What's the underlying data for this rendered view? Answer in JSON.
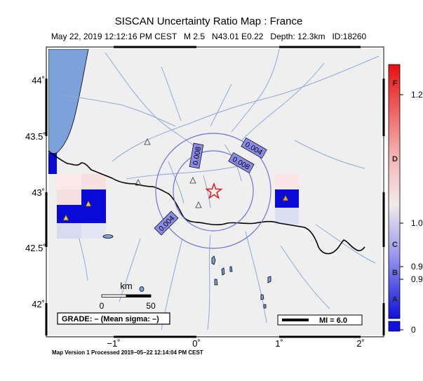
{
  "header": {
    "title": "SISCAN Uncertainty Ratio Map : France",
    "subtitle": "May 22, 2019 12:12:16 PM CEST   M 2.5   N43.01 E0.22   Depth: 12.3km   ID:18260"
  },
  "map": {
    "lat_ticks": [
      "44˚",
      "43.5˚",
      "43˚",
      "42.5˚",
      "42˚"
    ],
    "lon_ticks": [
      "−1˚",
      "0˚",
      "1˚",
      "2˚"
    ],
    "contour_labels": [
      "0.008",
      "0.004",
      "0.008",
      "0.004"
    ],
    "scalebar": {
      "unit": "km",
      "start": "0",
      "end": "50"
    },
    "grade_box": "GRADE: – (Mean sigma: –)",
    "mi_legend": "MI = 6.0",
    "epicenter": {
      "lat": 43.01,
      "lon": 0.22,
      "symbol": "red-star"
    }
  },
  "colorbar": {
    "grades": [
      "F",
      "D",
      "C",
      "B",
      "A"
    ],
    "value_labels": [
      "1.2",
      "1.0",
      "0.9",
      "0.9",
      "0"
    ]
  },
  "footer": "Map Version 1 Processed 2019−05−22 12:14:04 PM CEST",
  "colors": {
    "sea": "#7da2db",
    "land": "#efefef",
    "border": "#000000",
    "river": "#8fa8d8",
    "contour": "#6f6fe0",
    "cell_blue": "#0a0ad8",
    "epicenter": "#e01818"
  }
}
